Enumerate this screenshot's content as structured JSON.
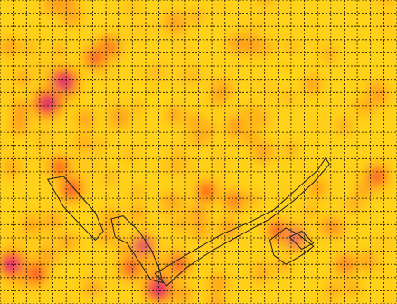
{
  "chart_data": {
    "type": "heatmap",
    "title": "",
    "xlabel": "",
    "ylabel": "",
    "grid": true,
    "grid_style": "dashed",
    "colorscale": [
      "#fff200",
      "#ffc21a",
      "#ff8a1e",
      "#ff3a1a",
      "#e0104f",
      "#c21ab8",
      "#9a1fe0"
    ],
    "background_color": "#ffd21a",
    "grid_color": "#111111",
    "outline_color": "#222222",
    "grid_columns": 30,
    "grid_rows": 23,
    "hotspots": [
      {
        "x": 0.14,
        "y": 0.31,
        "intensity": 0.95
      },
      {
        "x": 0.16,
        "y": 0.27,
        "intensity": 0.9
      },
      {
        "x": 0.12,
        "y": 0.34,
        "intensity": 0.85
      },
      {
        "x": 0.27,
        "y": 0.16,
        "intensity": 0.7
      },
      {
        "x": 0.24,
        "y": 0.19,
        "intensity": 0.6
      },
      {
        "x": 0.06,
        "y": 0.89,
        "intensity": 0.95
      },
      {
        "x": 0.03,
        "y": 0.87,
        "intensity": 0.85
      },
      {
        "x": 0.09,
        "y": 0.9,
        "intensity": 0.7
      },
      {
        "x": 0.4,
        "y": 0.95,
        "intensity": 0.85
      },
      {
        "x": 0.36,
        "y": 0.81,
        "intensity": 0.75
      },
      {
        "x": 0.33,
        "y": 0.88,
        "intensity": 0.65
      },
      {
        "x": 0.45,
        "y": 0.87,
        "intensity": 0.6
      },
      {
        "x": 0.18,
        "y": 0.62,
        "intensity": 0.7
      },
      {
        "x": 0.15,
        "y": 0.55,
        "intensity": 0.55
      },
      {
        "x": 0.74,
        "y": 0.78,
        "intensity": 0.75
      },
      {
        "x": 0.7,
        "y": 0.76,
        "intensity": 0.6
      },
      {
        "x": 0.52,
        "y": 0.63,
        "intensity": 0.55
      },
      {
        "x": 0.59,
        "y": 0.66,
        "intensity": 0.5
      },
      {
        "x": 0.95,
        "y": 0.58,
        "intensity": 0.6
      },
      {
        "x": 0.87,
        "y": 0.87,
        "intensity": 0.5
      },
      {
        "x": 0.8,
        "y": 0.62,
        "intensity": 0.45
      },
      {
        "x": 0.28,
        "y": 0.72,
        "intensity": 0.45
      },
      {
        "x": 0.49,
        "y": 0.4,
        "intensity": 0.35
      },
      {
        "x": 0.63,
        "y": 0.45,
        "intensity": 0.35
      },
      {
        "x": 0.08,
        "y": 0.74,
        "intensity": 0.45
      },
      {
        "x": 0.03,
        "y": 0.55,
        "intensity": 0.35
      },
      {
        "x": 0.92,
        "y": 0.35,
        "intensity": 0.35
      },
      {
        "x": 0.55,
        "y": 0.93,
        "intensity": 0.45
      },
      {
        "x": 0.66,
        "y": 0.9,
        "intensity": 0.4
      },
      {
        "x": 0.21,
        "y": 0.47,
        "intensity": 0.35
      },
      {
        "x": 0.38,
        "y": 0.3,
        "intensity": 0.3
      },
      {
        "x": 0.72,
        "y": 0.22,
        "intensity": 0.3
      }
    ],
    "outlines": [
      [
        [
          0.12,
          0.59
        ],
        [
          0.16,
          0.58
        ],
        [
          0.2,
          0.64
        ],
        [
          0.24,
          0.7
        ],
        [
          0.26,
          0.76
        ],
        [
          0.24,
          0.79
        ],
        [
          0.21,
          0.75
        ],
        [
          0.16,
          0.68
        ],
        [
          0.12,
          0.59
        ]
      ],
      [
        [
          0.28,
          0.72
        ],
        [
          0.31,
          0.71
        ],
        [
          0.35,
          0.76
        ],
        [
          0.38,
          0.82
        ],
        [
          0.4,
          0.88
        ],
        [
          0.41,
          0.93
        ],
        [
          0.38,
          0.92
        ],
        [
          0.35,
          0.86
        ],
        [
          0.32,
          0.8
        ],
        [
          0.29,
          0.78
        ],
        [
          0.28,
          0.72
        ]
      ],
      [
        [
          0.39,
          0.9
        ],
        [
          0.48,
          0.83
        ],
        [
          0.56,
          0.77
        ],
        [
          0.63,
          0.73
        ],
        [
          0.69,
          0.69
        ],
        [
          0.74,
          0.63
        ],
        [
          0.8,
          0.56
        ],
        [
          0.82,
          0.52
        ],
        [
          0.83,
          0.54
        ],
        [
          0.79,
          0.6
        ],
        [
          0.74,
          0.66
        ],
        [
          0.68,
          0.72
        ],
        [
          0.61,
          0.77
        ],
        [
          0.54,
          0.82
        ],
        [
          0.47,
          0.88
        ],
        [
          0.42,
          0.94
        ],
        [
          0.39,
          0.9
        ]
      ],
      [
        [
          0.68,
          0.79
        ],
        [
          0.72,
          0.75
        ],
        [
          0.75,
          0.77
        ],
        [
          0.79,
          0.81
        ],
        [
          0.76,
          0.84
        ],
        [
          0.72,
          0.87
        ],
        [
          0.69,
          0.84
        ],
        [
          0.68,
          0.79
        ]
      ],
      [
        [
          0.73,
          0.78
        ],
        [
          0.76,
          0.76
        ],
        [
          0.79,
          0.8
        ],
        [
          0.76,
          0.82
        ],
        [
          0.73,
          0.78
        ]
      ]
    ]
  }
}
